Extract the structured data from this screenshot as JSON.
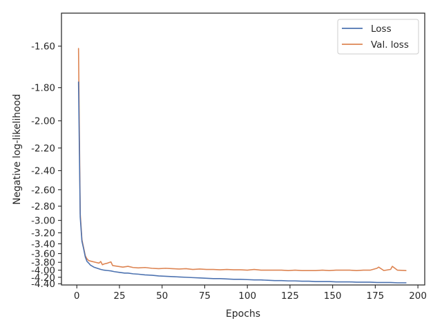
{
  "chart_data": {
    "type": "line",
    "xlabel": "Epochs",
    "ylabel": "Negative log-likelihood",
    "xlim": [
      -9,
      204
    ],
    "ylim": [
      -4.44,
      -1.47
    ],
    "y_scale": "reciprocal (spacing proportional to 1/|y|)",
    "x_ticks": [
      0,
      25,
      50,
      75,
      100,
      125,
      150,
      175,
      200
    ],
    "x_tick_labels": [
      "0",
      "25",
      "50",
      "75",
      "100",
      "125",
      "150",
      "175",
      "200"
    ],
    "y_ticks": [
      -1.6,
      -1.8,
      -2.0,
      -2.2,
      -2.4,
      -2.6,
      -2.8,
      -3.0,
      -3.2,
      -3.4,
      -3.6,
      -3.8,
      -4.0,
      -4.2,
      -4.4
    ],
    "y_tick_labels": [
      "-1.60",
      "-1.80",
      "-2.00",
      "-2.20",
      "-2.40",
      "-2.60",
      "-2.80",
      "-3.00",
      "-3.20",
      "-3.40",
      "-3.60",
      "-3.80",
      "-4.00",
      "-4.20",
      "-4.40"
    ],
    "grid": false,
    "legend_position": "top-right",
    "series": [
      {
        "name": "Loss",
        "color": "#4c72b0",
        "x": [
          1,
          2,
          3,
          4,
          5,
          6,
          7,
          8,
          10,
          12,
          14,
          16,
          18,
          20,
          22,
          25,
          28,
          30,
          33,
          36,
          40,
          44,
          48,
          52,
          56,
          60,
          64,
          68,
          72,
          76,
          80,
          84,
          88,
          92,
          96,
          100,
          104,
          108,
          112,
          116,
          120,
          124,
          128,
          132,
          136,
          140,
          144,
          148,
          152,
          156,
          160,
          164,
          168,
          172,
          176,
          180,
          184,
          188,
          193
        ],
        "y": [
          -1.77,
          -2.95,
          -3.35,
          -3.5,
          -3.68,
          -3.78,
          -3.82,
          -3.87,
          -3.92,
          -3.95,
          -3.98,
          -4.0,
          -4.01,
          -4.02,
          -4.04,
          -4.06,
          -4.08,
          -4.08,
          -4.1,
          -4.11,
          -4.13,
          -4.14,
          -4.16,
          -4.17,
          -4.18,
          -4.19,
          -4.2,
          -4.21,
          -4.22,
          -4.23,
          -4.24,
          -4.24,
          -4.25,
          -4.26,
          -4.26,
          -4.27,
          -4.28,
          -4.28,
          -4.29,
          -4.3,
          -4.3,
          -4.31,
          -4.31,
          -4.32,
          -4.32,
          -4.33,
          -4.33,
          -4.33,
          -4.34,
          -4.34,
          -4.34,
          -4.35,
          -4.35,
          -4.35,
          -4.36,
          -4.36,
          -4.36,
          -4.37,
          -4.37
        ]
      },
      {
        "name": "Val. loss",
        "color": "#dd8452",
        "x": [
          1,
          2,
          3,
          4,
          5,
          6,
          7,
          9,
          11,
          13,
          14,
          15,
          16,
          18,
          20,
          21,
          24,
          27,
          30,
          33,
          36,
          40,
          44,
          48,
          52,
          56,
          60,
          64,
          68,
          72,
          76,
          80,
          84,
          88,
          92,
          96,
          100,
          104,
          108,
          112,
          116,
          120,
          124,
          128,
          132,
          136,
          140,
          144,
          148,
          152,
          156,
          160,
          164,
          168,
          172,
          176,
          177,
          180,
          184,
          185,
          188,
          193
        ],
        "y": [
          -1.61,
          -2.9,
          -3.32,
          -3.48,
          -3.65,
          -3.72,
          -3.76,
          -3.78,
          -3.8,
          -3.82,
          -3.78,
          -3.86,
          -3.84,
          -3.82,
          -3.79,
          -3.88,
          -3.9,
          -3.92,
          -3.9,
          -3.93,
          -3.94,
          -3.93,
          -3.95,
          -3.96,
          -3.95,
          -3.96,
          -3.97,
          -3.96,
          -3.98,
          -3.97,
          -3.98,
          -3.98,
          -3.99,
          -3.98,
          -3.99,
          -3.99,
          -4.0,
          -3.98,
          -4.0,
          -4.0,
          -4.0,
          -4.0,
          -4.01,
          -4.0,
          -4.01,
          -4.01,
          -4.01,
          -4.0,
          -4.01,
          -4.0,
          -4.0,
          -4.0,
          -4.01,
          -4.0,
          -4.0,
          -3.95,
          -3.92,
          -4.01,
          -3.98,
          -3.9,
          -4.0,
          -4.01
        ]
      }
    ]
  }
}
